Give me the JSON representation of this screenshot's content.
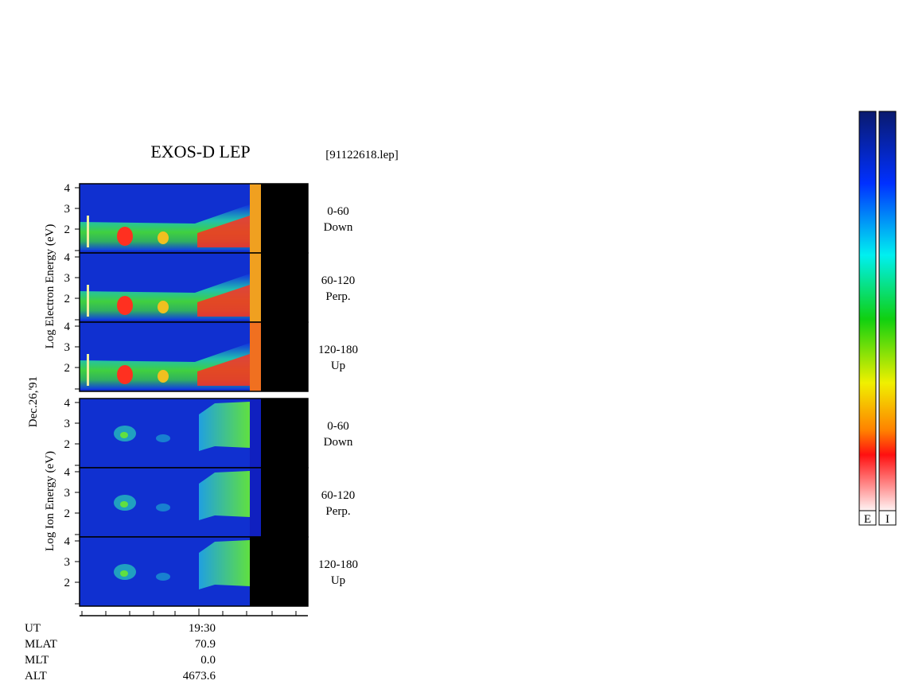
{
  "title": "EXOS-D LEP",
  "file": "[91122618.lep]",
  "date": "Dec.26,'91",
  "electron": {
    "ylabel": "Log Electron Energy (eV)",
    "panels": [
      {
        "label": "0-60",
        "sublabel": "Down"
      },
      {
        "label": "60-120",
        "sublabel": "Perp."
      },
      {
        "label": "120-180",
        "sublabel": "Up"
      }
    ]
  },
  "ion": {
    "ylabel": "Log Ion Energy (eV)",
    "panels": [
      {
        "label": "0-60",
        "sublabel": "Down"
      },
      {
        "label": "60-120",
        "sublabel": "Perp."
      },
      {
        "label": "120-180",
        "sublabel": "Up"
      }
    ]
  },
  "yticks": [
    2,
    3,
    4
  ],
  "time_rows": [
    [
      "UT",
      "19:30"
    ],
    [
      "MLAT",
      "70.9"
    ],
    [
      "MLT",
      "0.0"
    ],
    [
      "ALT",
      "4673.6"
    ]
  ],
  "colorbars": [
    "E",
    "I"
  ]
}
